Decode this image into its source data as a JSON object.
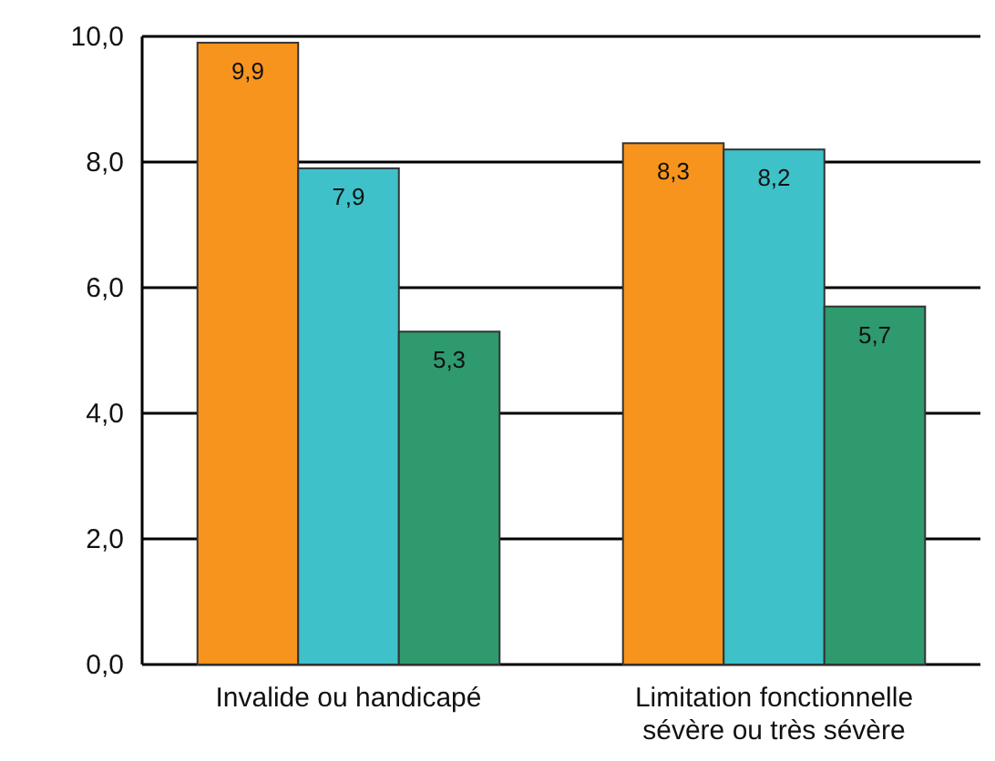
{
  "chart_data": {
    "type": "bar",
    "categories": [
      "Invalide ou handicapé",
      "Limitation fonctionnelle sévère ou très sévère"
    ],
    "series": [
      {
        "color": "#f7941d",
        "values": [
          9.9,
          8.3
        ],
        "value_labels": [
          "9,9",
          "8,3"
        ]
      },
      {
        "color": "#3ec1c9",
        "values": [
          7.9,
          8.2
        ],
        "value_labels": [
          "7,9",
          "8,2"
        ]
      },
      {
        "color": "#2e9a6e",
        "values": [
          5.3,
          5.7
        ],
        "value_labels": [
          "5,3",
          "5,7"
        ]
      }
    ],
    "ylim": [
      0,
      10
    ],
    "yticks": [
      {
        "value": 0,
        "label": "0,0"
      },
      {
        "value": 2,
        "label": "2,0"
      },
      {
        "value": 4,
        "label": "4,0"
      },
      {
        "value": 6,
        "label": "6,0"
      },
      {
        "value": 8,
        "label": "8,0"
      },
      {
        "value": 10,
        "label": "10,0"
      }
    ],
    "grid": "y"
  }
}
